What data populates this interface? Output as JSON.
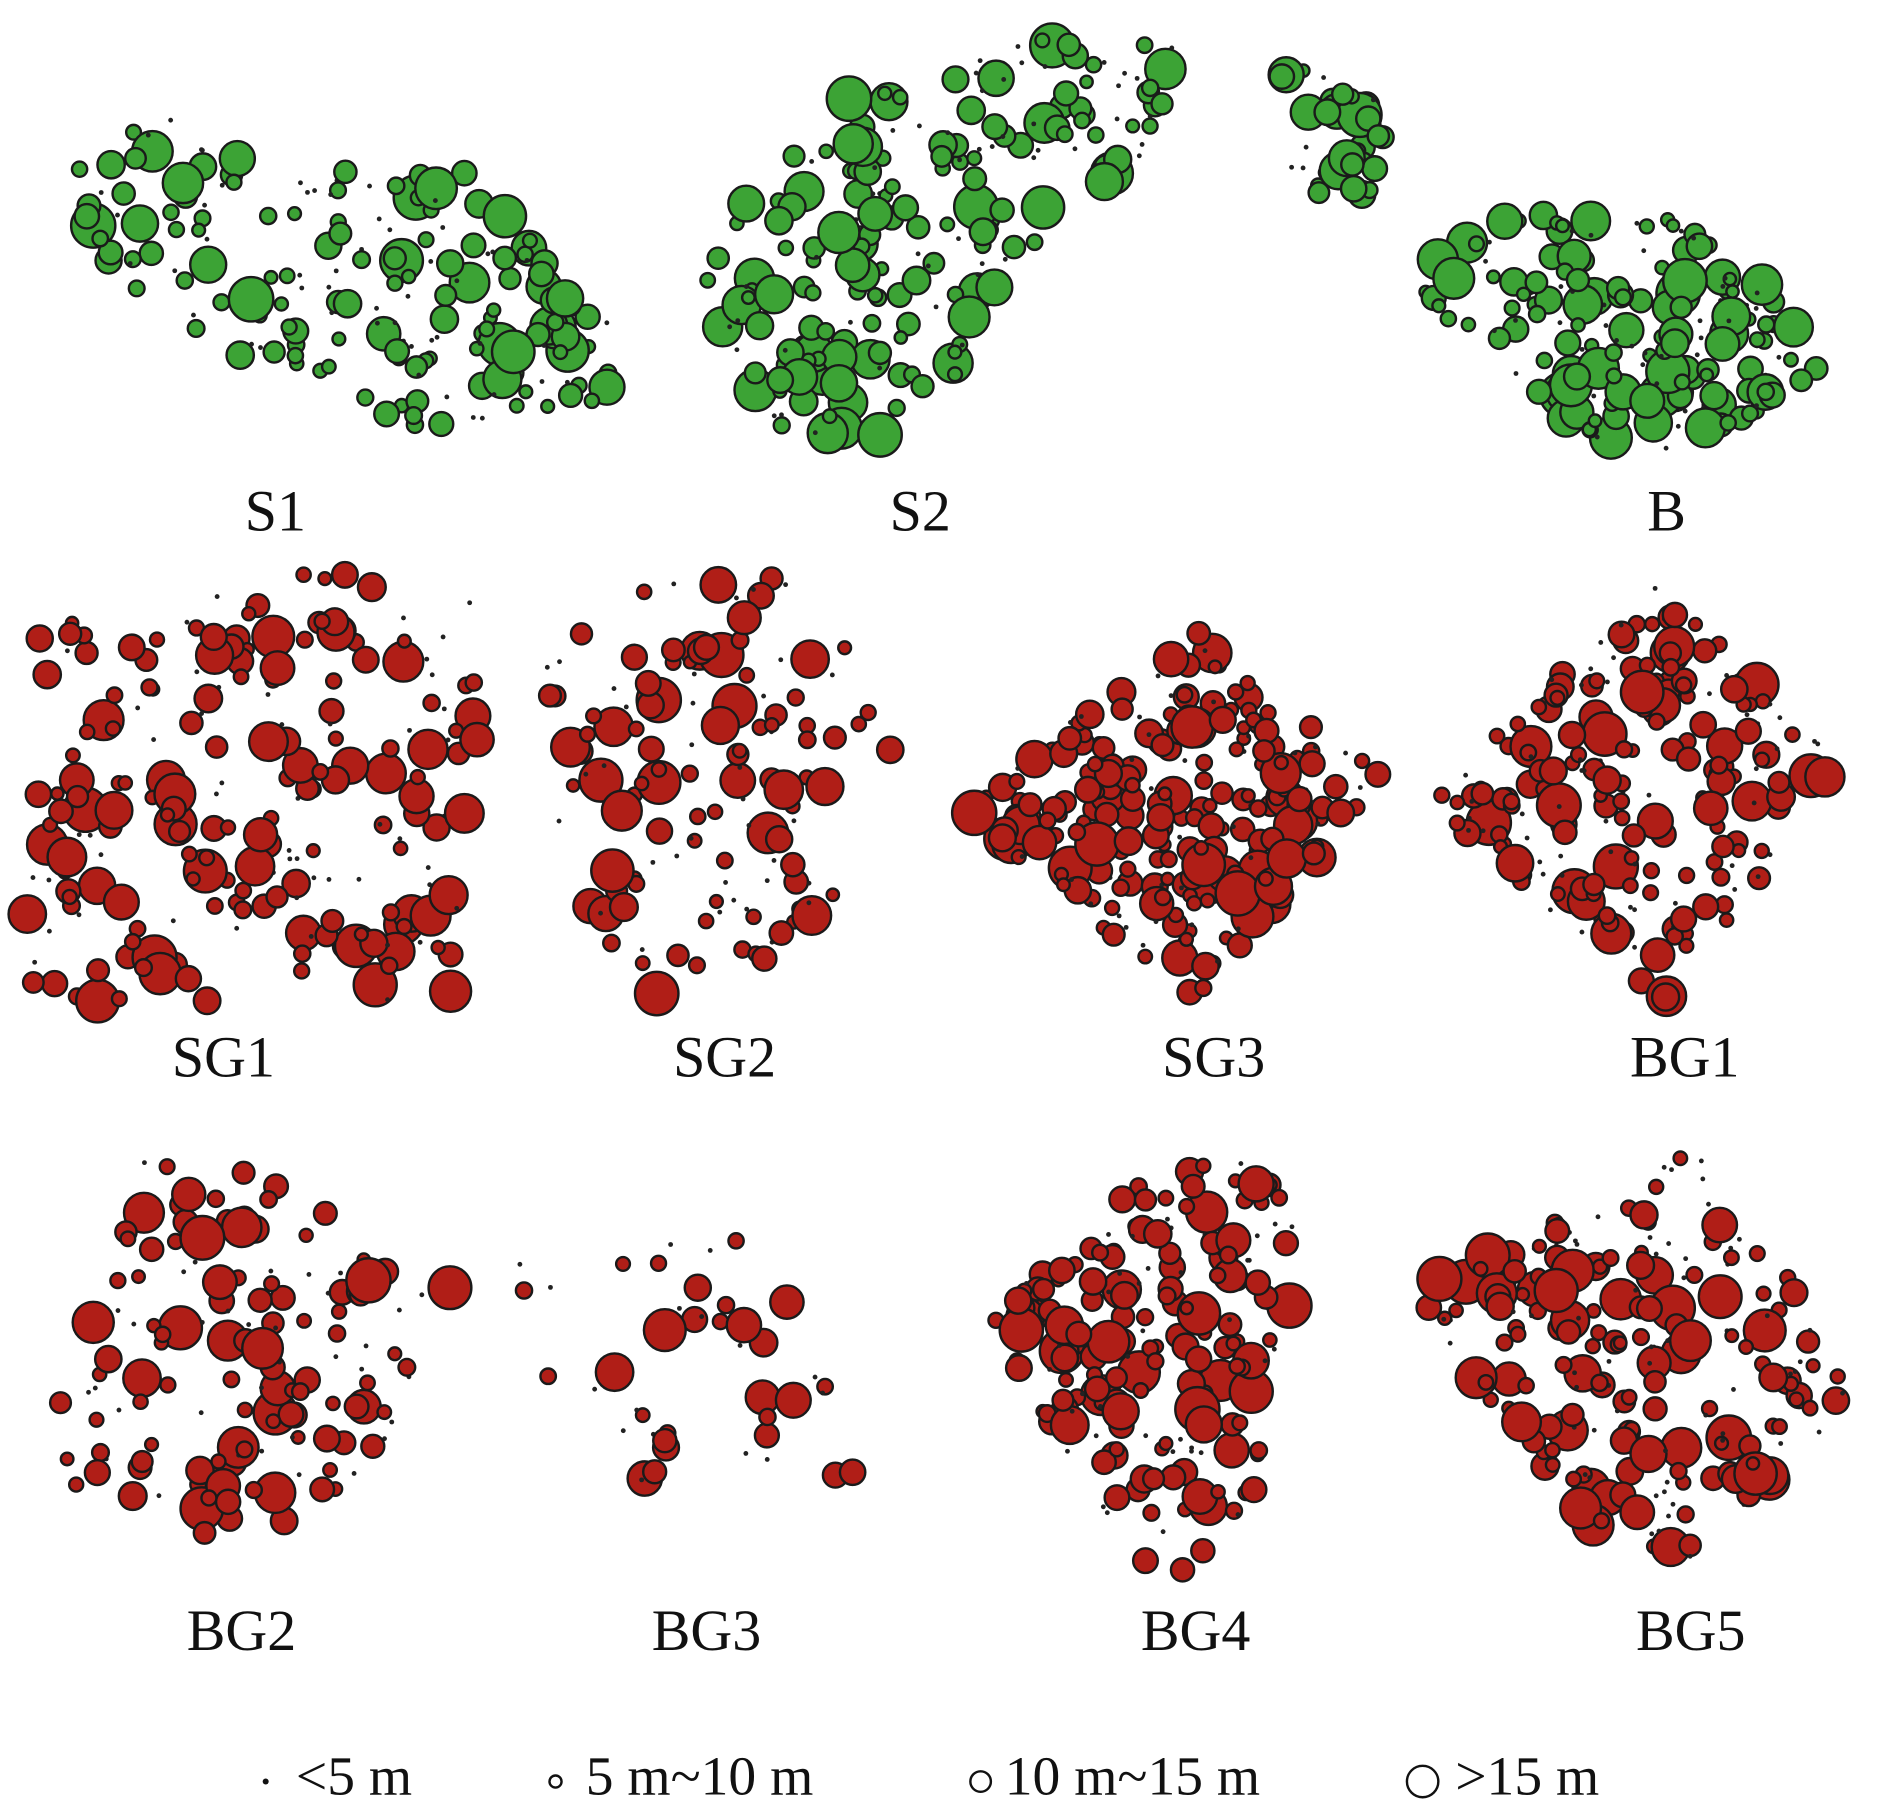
{
  "panels": [
    {
      "label": "S1"
    },
    {
      "label": "S2"
    },
    {
      "label": "B"
    },
    {
      "label": "SG1"
    },
    {
      "label": "SG2"
    },
    {
      "label": "SG3"
    },
    {
      "label": "BG1"
    },
    {
      "label": "BG2"
    },
    {
      "label": "BG3"
    },
    {
      "label": "BG4"
    },
    {
      "label": "BG5"
    }
  ],
  "legend": [
    "<5 m",
    "5 m~10 m",
    "10 m~15 m",
    ">15 m"
  ]
}
